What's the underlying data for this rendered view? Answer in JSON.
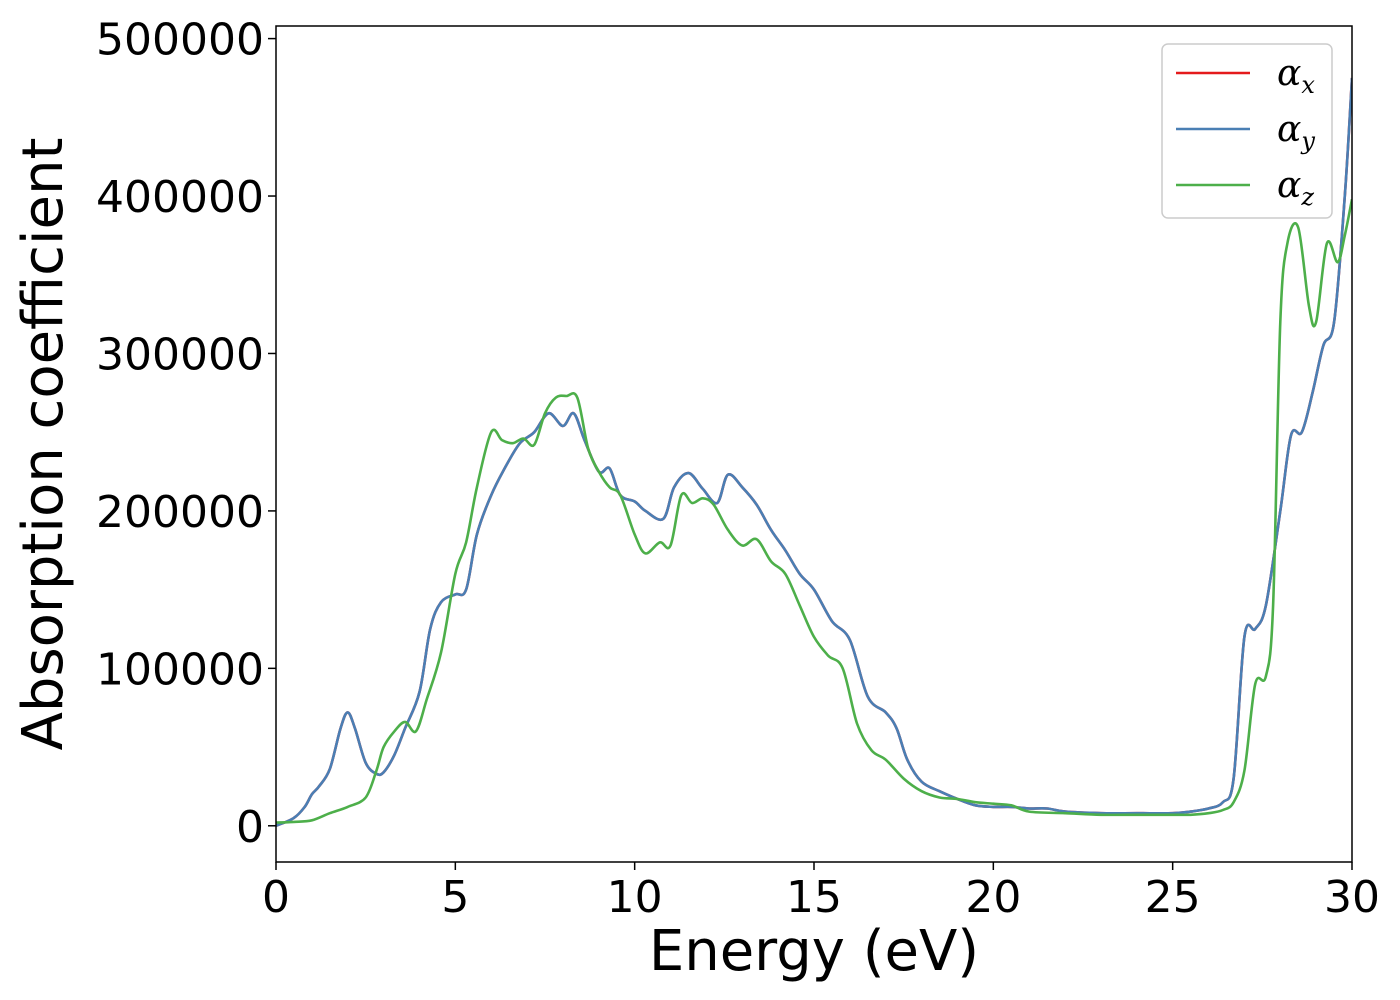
{
  "chart_data": {
    "type": "line",
    "xlabel": "Energy (eV)",
    "ylabel": "Absorption coefficient",
    "xlim": [
      0,
      30
    ],
    "ylim": [
      -23000,
      508000
    ],
    "xticks": [
      "0",
      "5",
      "10",
      "15",
      "20",
      "25",
      "30"
    ],
    "xtick_values": [
      0,
      5,
      10,
      15,
      20,
      25,
      30
    ],
    "yticks": [
      "0",
      "100000",
      "200000",
      "300000",
      "400000",
      "500000"
    ],
    "ytick_values": [
      0,
      100000,
      200000,
      300000,
      400000,
      500000
    ],
    "grid": false,
    "legend_position": "top-right",
    "series": [
      {
        "name": "α",
        "subscript": "x",
        "color": "#e41a1c",
        "x": [
          0,
          0.5,
          0.8,
          1.0,
          1.2,
          1.5,
          1.8,
          2.0,
          2.2,
          2.5,
          2.8,
          3.0,
          3.3,
          3.6,
          4.0,
          4.3,
          4.6,
          5.0,
          5.3,
          5.6,
          6.0,
          6.4,
          6.8,
          7.2,
          7.6,
          8.0,
          8.3,
          8.6,
          9.0,
          9.3,
          9.6,
          10.0,
          10.3,
          10.8,
          11.1,
          11.5,
          11.9,
          12.3,
          12.6,
          13.0,
          13.4,
          13.8,
          14.2,
          14.6,
          15.0,
          15.5,
          16.0,
          16.5,
          17.0,
          17.3,
          17.6,
          18.0,
          18.5,
          19.0,
          19.5,
          20.0,
          20.5,
          21.0,
          21.5,
          22.0,
          23.0,
          24.0,
          25.0,
          25.5,
          26.0,
          26.4,
          26.7,
          27.0,
          27.3,
          27.6,
          28.0,
          28.3,
          28.6,
          28.9,
          29.2,
          29.5,
          29.8,
          30.0
        ],
        "y": [
          0,
          5000,
          12000,
          20000,
          25000,
          36000,
          62000,
          72000,
          62000,
          40000,
          33000,
          34000,
          45000,
          62000,
          85000,
          125000,
          142000,
          147000,
          150000,
          185000,
          210000,
          228000,
          243000,
          250000,
          262000,
          254000,
          262000,
          245000,
          225000,
          227000,
          210000,
          206000,
          200000,
          195000,
          215000,
          224000,
          214000,
          205000,
          223000,
          215000,
          204000,
          188000,
          175000,
          160000,
          150000,
          130000,
          118000,
          82000,
          72000,
          62000,
          42000,
          28000,
          22000,
          17000,
          13000,
          12000,
          12000,
          11000,
          11000,
          9000,
          8000,
          8000,
          8000,
          9000,
          11000,
          15000,
          30000,
          120000,
          125000,
          140000,
          200000,
          248000,
          250000,
          275000,
          305000,
          320000,
          400000,
          475000
        ]
      },
      {
        "name": "α",
        "subscript": "y",
        "color": "#4a7fb4",
        "x": [
          0,
          0.5,
          0.8,
          1.0,
          1.2,
          1.5,
          1.8,
          2.0,
          2.2,
          2.5,
          2.8,
          3.0,
          3.3,
          3.6,
          4.0,
          4.3,
          4.6,
          5.0,
          5.3,
          5.6,
          6.0,
          6.4,
          6.8,
          7.2,
          7.6,
          8.0,
          8.3,
          8.6,
          9.0,
          9.3,
          9.6,
          10.0,
          10.3,
          10.8,
          11.1,
          11.5,
          11.9,
          12.3,
          12.6,
          13.0,
          13.4,
          13.8,
          14.2,
          14.6,
          15.0,
          15.5,
          16.0,
          16.5,
          17.0,
          17.3,
          17.6,
          18.0,
          18.5,
          19.0,
          19.5,
          20.0,
          20.5,
          21.0,
          21.5,
          22.0,
          23.0,
          24.0,
          25.0,
          25.5,
          26.0,
          26.4,
          26.7,
          27.0,
          27.3,
          27.6,
          28.0,
          28.3,
          28.6,
          28.9,
          29.2,
          29.5,
          29.8,
          30.0
        ],
        "y": [
          0,
          5000,
          12000,
          20000,
          25000,
          36000,
          62000,
          72000,
          62000,
          40000,
          33000,
          34000,
          45000,
          62000,
          85000,
          125000,
          142000,
          147000,
          150000,
          185000,
          210000,
          228000,
          243000,
          250000,
          262000,
          254000,
          262000,
          245000,
          225000,
          227000,
          210000,
          206000,
          200000,
          195000,
          215000,
          224000,
          214000,
          205000,
          223000,
          215000,
          204000,
          188000,
          175000,
          160000,
          150000,
          130000,
          118000,
          82000,
          72000,
          62000,
          42000,
          28000,
          22000,
          17000,
          13000,
          12000,
          12000,
          11000,
          11000,
          9000,
          8000,
          8000,
          8000,
          9000,
          11000,
          15000,
          30000,
          120000,
          125000,
          140000,
          200000,
          248000,
          250000,
          275000,
          305000,
          320000,
          400000,
          475000
        ]
      },
      {
        "name": "α",
        "subscript": "z",
        "color": "#4daf4a",
        "x": [
          0,
          0.5,
          1.0,
          1.5,
          2.0,
          2.5,
          2.8,
          3.0,
          3.3,
          3.6,
          3.9,
          4.2,
          4.6,
          5.0,
          5.3,
          5.6,
          6.0,
          6.3,
          6.6,
          6.9,
          7.2,
          7.5,
          7.8,
          8.1,
          8.4,
          8.7,
          9.0,
          9.3,
          9.6,
          10.0,
          10.3,
          10.7,
          11.0,
          11.3,
          11.6,
          11.9,
          12.2,
          12.6,
          13.0,
          13.4,
          13.8,
          14.2,
          14.6,
          15.0,
          15.4,
          15.8,
          16.2,
          16.6,
          17.0,
          17.5,
          18.0,
          18.5,
          19.0,
          19.5,
          20.0,
          20.5,
          21.0,
          22.0,
          23.0,
          24.0,
          25.0,
          25.5,
          26.0,
          26.4,
          26.7,
          27.0,
          27.3,
          27.6,
          27.8,
          28.0,
          28.2,
          28.5,
          28.8,
          29.0,
          29.3,
          29.6,
          29.8,
          30.0
        ],
        "y": [
          2000,
          2500,
          3500,
          8000,
          12000,
          18000,
          35000,
          50000,
          60000,
          66000,
          60000,
          80000,
          110000,
          160000,
          180000,
          215000,
          250000,
          245000,
          243000,
          246000,
          242000,
          262000,
          272000,
          273000,
          272000,
          240000,
          225000,
          215000,
          210000,
          185000,
          173000,
          180000,
          178000,
          210000,
          205000,
          208000,
          204000,
          188000,
          178000,
          182000,
          168000,
          160000,
          140000,
          120000,
          108000,
          100000,
          65000,
          48000,
          42000,
          30000,
          22000,
          18000,
          17000,
          15000,
          14000,
          13000,
          9000,
          8000,
          7000,
          7000,
          7000,
          7000,
          8000,
          10000,
          15000,
          35000,
          90000,
          95000,
          140000,
          320000,
          370000,
          380000,
          330000,
          320000,
          370000,
          358000,
          375000,
          398000
        ]
      }
    ]
  }
}
